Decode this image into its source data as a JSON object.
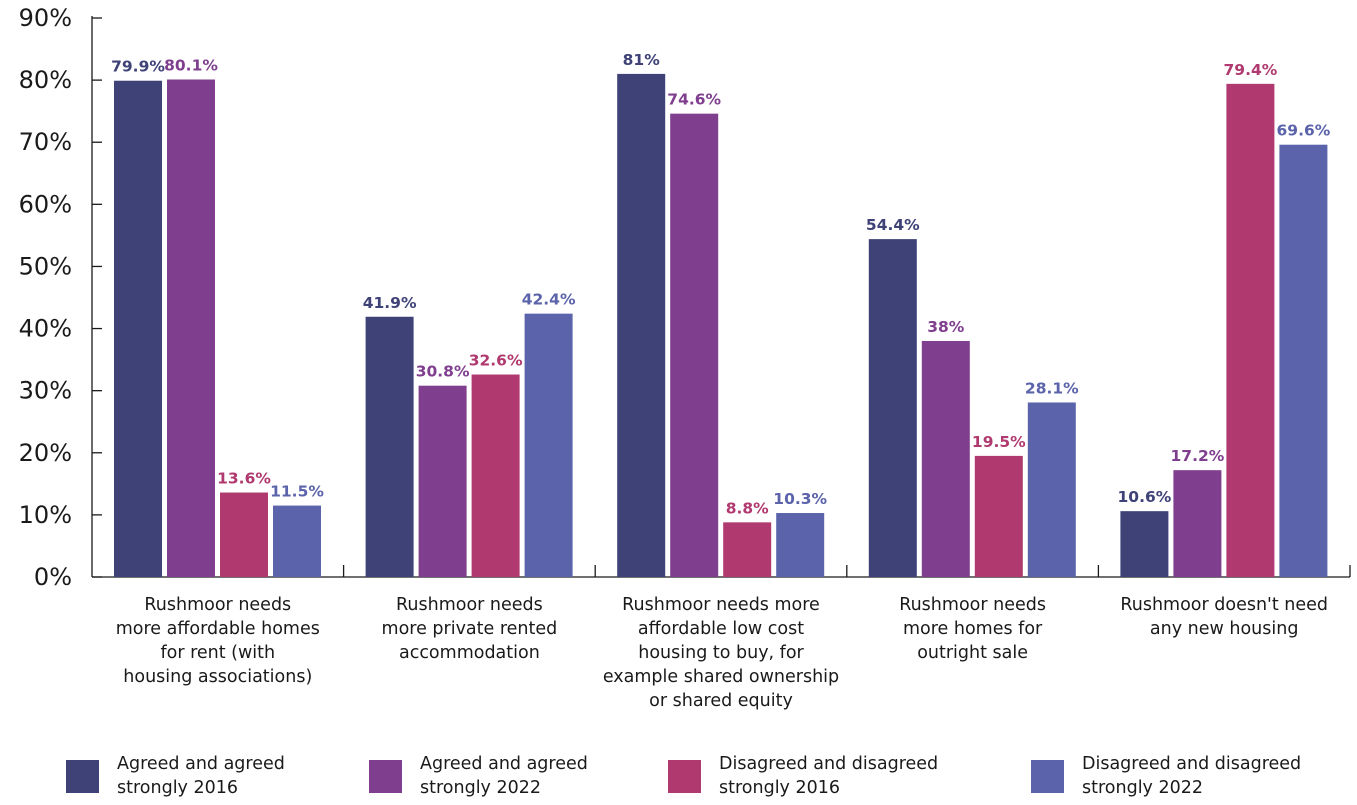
{
  "chart_data": {
    "type": "bar",
    "title": "",
    "xlabel": "",
    "ylabel": "",
    "ylim": [
      0,
      90
    ],
    "yticks": [
      "0%",
      "10%",
      "20%",
      "30%",
      "40%",
      "50%",
      "60%",
      "70%",
      "80%",
      "90%"
    ],
    "categories": [
      "Rushmoor needs more affordable homes for rent (with housing associations)",
      "Rushmoor needs more private rented accommodation",
      "Rushmoor needs more affordable low cost housing to buy, for example shared ownership or shared equity",
      "Rushmoor needs more homes for outright sale",
      "Rushmoor doesn't need any new housing"
    ],
    "series": [
      {
        "name": "Agreed and agreed strongly 2016",
        "color": "#3e4277",
        "values": [
          79.9,
          41.9,
          81,
          54.4,
          10.6
        ],
        "labels": [
          "79.9%",
          "41.9%",
          "81%",
          "54.4%",
          "10.6%"
        ]
      },
      {
        "name": "Agreed and agreed strongly 2022",
        "color": "#7f3f8e",
        "values": [
          80.1,
          30.8,
          74.6,
          38,
          17.2
        ],
        "labels": [
          "80.1%",
          "30.8%",
          "74.6%",
          "38%",
          "17.2%"
        ]
      },
      {
        "name": "Disagreed and disagreed strongly 2016",
        "color": "#b03a6f",
        "values": [
          13.6,
          32.6,
          8.8,
          19.5,
          79.4
        ],
        "labels": [
          "13.6%",
          "32.6%",
          "8.8%",
          "19.5%",
          "79.4%"
        ]
      },
      {
        "name": "Disagreed and disagreed strongly 2022",
        "color": "#5b63ab",
        "values": [
          11.5,
          42.4,
          10.3,
          28.1,
          69.6
        ],
        "labels": [
          "11.5%",
          "42.4%",
          "10.3%",
          "28.1%",
          "69.6%"
        ]
      }
    ],
    "grid": false,
    "legend_position": "bottom"
  },
  "category_lines": [
    [
      "Rushmoor needs",
      "more affordable homes",
      "for rent (with",
      "housing associations)"
    ],
    [
      "Rushmoor needs",
      "more private rented",
      "accommodation"
    ],
    [
      "Rushmoor needs more",
      "affordable low cost",
      "housing to buy, for",
      "example shared ownership",
      "or shared equity"
    ],
    [
      "Rushmoor needs",
      "more homes for",
      "outright sale"
    ],
    [
      "Rushmoor doesn't need",
      "any new housing"
    ]
  ],
  "legend": [
    {
      "line1": "Agreed and agreed",
      "line2": "strongly 2016",
      "color": "#3e4277"
    },
    {
      "line1": "Agreed and agreed",
      "line2": "strongly 2022",
      "color": "#7f3f8e"
    },
    {
      "line1": "Disagreed and disagreed",
      "line2": "strongly 2016",
      "color": "#b03a6f"
    },
    {
      "line1": "Disagreed and disagreed",
      "line2": "strongly 2022",
      "color": "#5b63ab"
    }
  ]
}
